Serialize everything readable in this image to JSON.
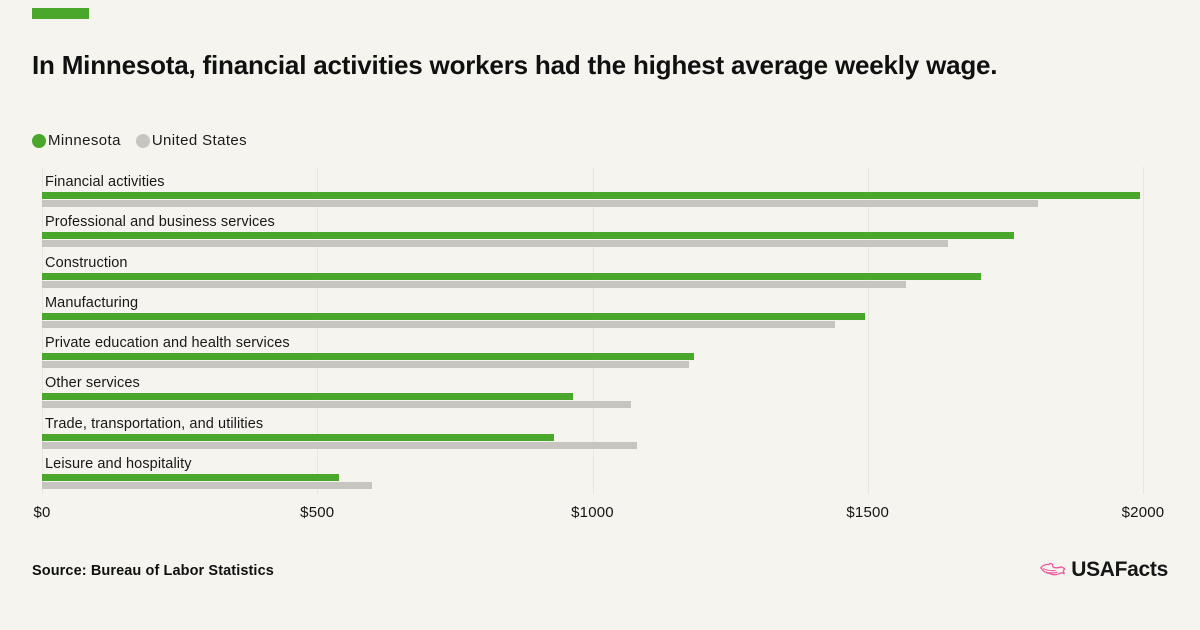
{
  "brand": {
    "accent_color": "#4ba62c"
  },
  "title": "In Minnesota, financial activities workers had the highest average weekly wage.",
  "legend": {
    "items": [
      {
        "label": "Minnesota",
        "color": "#4ba62c"
      },
      {
        "label": "United States",
        "color": "#c6c5c0"
      }
    ]
  },
  "chart_data": {
    "type": "bar",
    "orientation": "horizontal",
    "title": "In Minnesota, financial activities workers had the highest average weekly wage.",
    "categories": [
      "Financial activities",
      "Professional and business services",
      "Construction",
      "Manufacturing",
      "Private education and health services",
      "Other services",
      "Trade, transportation, and utilities",
      "Leisure and hospitality"
    ],
    "series": [
      {
        "name": "Minnesota",
        "color": "#4ba62c",
        "values": [
          1995,
          1765,
          1705,
          1495,
          1185,
          965,
          930,
          540
        ]
      },
      {
        "name": "United States",
        "color": "#c6c5c0",
        "values": [
          1810,
          1645,
          1570,
          1440,
          1175,
          1070,
          1080,
          600
        ]
      }
    ],
    "xlim": [
      0,
      2000
    ],
    "x_tick_labels": [
      "$0",
      "$500",
      "$1000",
      "$1500",
      "$2000"
    ],
    "grid": true,
    "gridline_color": "#e7e6e0",
    "legend_position": "top-left",
    "units": "US dollars, average weekly wage"
  },
  "footer": {
    "source": "Source: Bureau of Labor Statistics",
    "logo": {
      "text": "USAFacts",
      "icon": "usa-map-icon",
      "icon_color": "#f0549e"
    }
  }
}
